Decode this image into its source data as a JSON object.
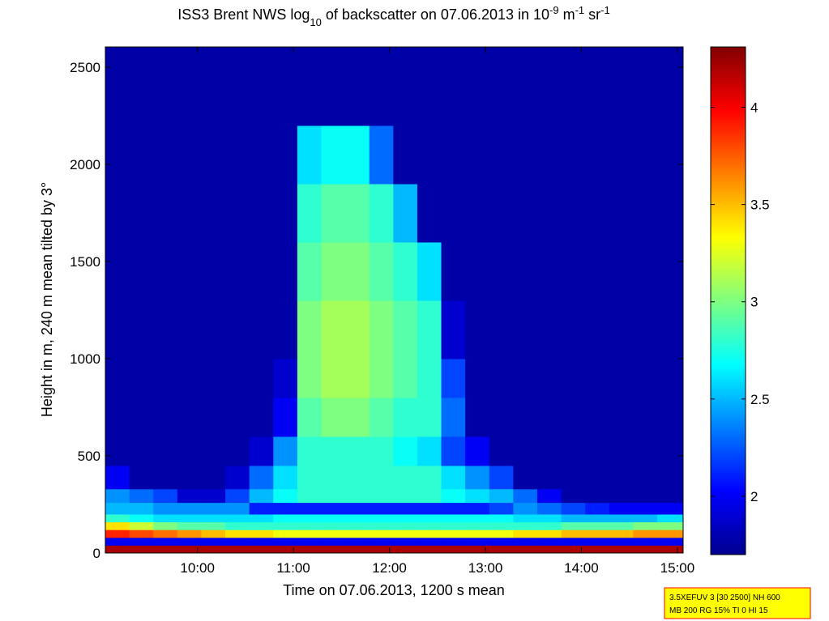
{
  "chart_data": {
    "type": "heatmap",
    "title_parts": [
      {
        "text": "ISS3 Brent NWS log",
        "shift": "baseline"
      },
      {
        "text": "10",
        "shift": "sub"
      },
      {
        "text": " of backscatter on 07.06.2013 in 10",
        "shift": "baseline"
      },
      {
        "text": "-9",
        "shift": "super"
      },
      {
        "text": " m",
        "shift": "baseline"
      },
      {
        "text": "-1",
        "shift": "super"
      },
      {
        "text": " sr",
        "shift": "baseline"
      },
      {
        "text": "-1",
        "shift": "super"
      }
    ],
    "xlabel": "Time on 07.06.2013, 1200 s mean",
    "ylabel": "Height in m, 240 m mean tilted by 3°",
    "xlim": [
      9.04,
      15.06
    ],
    "xticks": [
      {
        "value": 10,
        "label": "10:00"
      },
      {
        "value": 11,
        "label": "11:00"
      },
      {
        "value": 12,
        "label": "12:00"
      },
      {
        "value": 13,
        "label": "13:00"
      },
      {
        "value": 14,
        "label": "14:00"
      },
      {
        "value": 15,
        "label": "15:00"
      }
    ],
    "ylim": [
      0,
      2604
    ],
    "yticks": [
      0,
      500,
      1000,
      1500,
      2000,
      2500
    ],
    "colormap": "jet",
    "clim": [
      1.7,
      4.31
    ],
    "cticks": [
      2,
      2.5,
      3,
      3.5,
      4
    ],
    "x_edges": [
      9.04,
      9.29,
      9.54,
      9.79,
      10.04,
      10.29,
      10.54,
      10.79,
      11.04,
      11.29,
      11.54,
      11.79,
      12.04,
      12.29,
      12.54,
      12.79,
      13.04,
      13.29,
      13.54,
      13.79,
      14.04,
      14.29,
      14.54,
      14.79,
      15.06
    ],
    "y_edges": [
      0,
      40,
      80,
      120,
      160,
      200,
      260,
      330,
      450,
      600,
      800,
      1000,
      1300,
      1600,
      1900,
      2200,
      2604
    ],
    "z": [
      [
        4.2,
        4.2,
        4.2,
        4.2,
        4.2,
        4.2,
        4.2,
        4.2,
        4.2,
        4.2,
        4.2,
        4.2,
        4.2,
        4.2,
        4.2,
        4.2,
        4.2,
        4.2,
        4.2,
        4.2,
        4.2,
        4.2,
        4.2,
        4.2
      ],
      [
        2.0,
        2.0,
        2.0,
        2.0,
        2.0,
        2.0,
        2.0,
        2.0,
        2.0,
        2.0,
        2.0,
        2.0,
        2.0,
        2.0,
        2.0,
        2.0,
        2.0,
        2.0,
        2.0,
        2.0,
        2.0,
        2.0,
        2.0,
        2.0
      ],
      [
        3.9,
        3.8,
        3.7,
        3.6,
        3.5,
        3.4,
        3.4,
        3.3,
        3.3,
        3.3,
        3.3,
        3.3,
        3.3,
        3.3,
        3.3,
        3.3,
        3.3,
        3.4,
        3.4,
        3.5,
        3.5,
        3.5,
        3.6,
        3.6
      ],
      [
        3.4,
        3.2,
        3.0,
        2.9,
        2.9,
        2.8,
        2.8,
        2.8,
        2.8,
        2.8,
        2.8,
        2.8,
        2.8,
        2.8,
        2.8,
        2.8,
        2.8,
        2.8,
        2.8,
        2.9,
        2.9,
        2.9,
        3.0,
        3.0
      ],
      [
        2.8,
        2.7,
        2.6,
        2.6,
        2.6,
        2.6,
        2.6,
        2.7,
        2.7,
        2.7,
        2.7,
        2.7,
        2.7,
        2.7,
        2.7,
        2.7,
        2.7,
        2.6,
        2.6,
        2.5,
        2.5,
        2.5,
        2.5,
        2.6
      ],
      [
        2.5,
        2.5,
        2.4,
        2.4,
        2.4,
        2.4,
        2.1,
        2.1,
        2.1,
        2.1,
        2.1,
        2.1,
        2.1,
        2.1,
        2.1,
        2.1,
        2.2,
        2.4,
        2.3,
        2.2,
        2.1,
        2.0,
        2.0,
        2.0
      ],
      [
        2.4,
        2.3,
        2.2,
        1.9,
        1.9,
        2.2,
        2.5,
        2.7,
        2.8,
        2.8,
        2.8,
        2.8,
        2.8,
        2.8,
        2.7,
        2.6,
        2.5,
        2.3,
        2.0,
        1.8,
        1.8,
        1.8,
        1.8,
        1.8
      ],
      [
        2.0,
        1.8,
        1.8,
        1.8,
        1.8,
        1.9,
        2.3,
        2.6,
        2.8,
        2.8,
        2.8,
        2.8,
        2.8,
        2.8,
        2.6,
        2.4,
        2.2,
        1.8,
        1.8,
        1.8,
        1.8,
        1.8,
        1.8,
        1.8
      ],
      [
        1.8,
        1.8,
        1.8,
        1.8,
        1.8,
        1.8,
        1.9,
        2.4,
        2.8,
        2.8,
        2.8,
        2.8,
        2.7,
        2.6,
        2.2,
        2.0,
        1.8,
        1.8,
        1.8,
        1.8,
        1.8,
        1.8,
        1.8,
        1.8
      ],
      [
        1.8,
        1.8,
        1.8,
        1.8,
        1.8,
        1.8,
        1.8,
        2.0,
        2.9,
        3.0,
        3.0,
        2.9,
        2.8,
        2.8,
        2.3,
        1.8,
        1.8,
        1.8,
        1.8,
        1.8,
        1.8,
        1.8,
        1.8,
        1.8
      ],
      [
        1.8,
        1.8,
        1.8,
        1.8,
        1.8,
        1.8,
        1.8,
        1.9,
        3.0,
        3.1,
        3.1,
        3.0,
        2.9,
        2.8,
        2.2,
        1.8,
        1.8,
        1.8,
        1.8,
        1.8,
        1.8,
        1.8,
        1.8,
        1.8
      ],
      [
        1.8,
        1.8,
        1.8,
        1.8,
        1.8,
        1.8,
        1.8,
        1.8,
        3.0,
        3.1,
        3.1,
        3.0,
        2.9,
        2.8,
        1.9,
        1.8,
        1.8,
        1.8,
        1.8,
        1.8,
        1.8,
        1.8,
        1.8,
        1.8
      ],
      [
        1.8,
        1.8,
        1.8,
        1.8,
        1.8,
        1.8,
        1.8,
        1.8,
        2.9,
        3.0,
        3.0,
        2.9,
        2.8,
        2.6,
        1.8,
        1.8,
        1.8,
        1.8,
        1.8,
        1.8,
        1.8,
        1.8,
        1.8,
        1.8
      ],
      [
        1.8,
        1.8,
        1.8,
        1.8,
        1.8,
        1.8,
        1.8,
        1.8,
        2.8,
        2.9,
        2.9,
        2.8,
        2.5,
        1.8,
        1.8,
        1.8,
        1.8,
        1.8,
        1.8,
        1.8,
        1.8,
        1.8,
        1.8,
        1.8
      ],
      [
        1.8,
        1.8,
        1.8,
        1.8,
        1.8,
        1.8,
        1.8,
        1.8,
        2.6,
        2.7,
        2.7,
        2.3,
        1.8,
        1.8,
        1.8,
        1.8,
        1.8,
        1.8,
        1.8,
        1.8,
        1.8,
        1.8,
        1.8,
        1.8
      ],
      [
        1.8,
        1.8,
        1.8,
        1.8,
        1.8,
        1.8,
        1.8,
        1.8,
        1.8,
        1.8,
        1.8,
        1.8,
        1.8,
        1.8,
        1.8,
        1.8,
        1.8,
        1.8,
        1.8,
        1.8,
        1.8,
        1.8,
        1.8,
        1.8
      ]
    ],
    "info_box": [
      "3.5XEFUV 3 [30 2500] NH 600",
      "MB 200 RG 15% TI 0 HI 15"
    ]
  }
}
